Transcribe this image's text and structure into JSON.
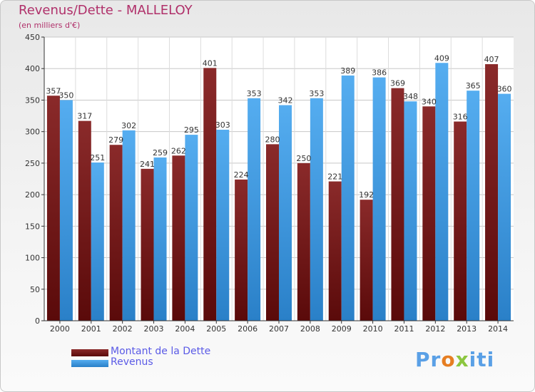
{
  "chart_data": {
    "type": "bar",
    "title": "Revenus/Dette - MALLELOY",
    "subtitle": "(en milliers d'€)",
    "categories": [
      "2000",
      "2001",
      "2002",
      "2003",
      "2004",
      "2005",
      "2006",
      "2007",
      "2008",
      "2009",
      "2010",
      "2011",
      "2012",
      "2013",
      "2014"
    ],
    "series": [
      {
        "name": "Montant de la Dette",
        "color": "#7a1c1c",
        "values": [
          357,
          317,
          279,
          241,
          262,
          401,
          224,
          280,
          250,
          221,
          192,
          369,
          340,
          316,
          407
        ]
      },
      {
        "name": "Revenus",
        "color": "#3d9ee6",
        "values": [
          350,
          251,
          302,
          259,
          295,
          303,
          353,
          342,
          353,
          389,
          386,
          348,
          409,
          365,
          360
        ]
      }
    ],
    "ylim": [
      0,
      450
    ],
    "yticks": [
      0,
      50,
      100,
      150,
      200,
      250,
      300,
      350,
      400,
      450
    ],
    "grid": true,
    "legend_position": "bottom-left"
  },
  "logo": {
    "p1": "Pr",
    "o": "o",
    "x": "x",
    "p2": "iti"
  }
}
